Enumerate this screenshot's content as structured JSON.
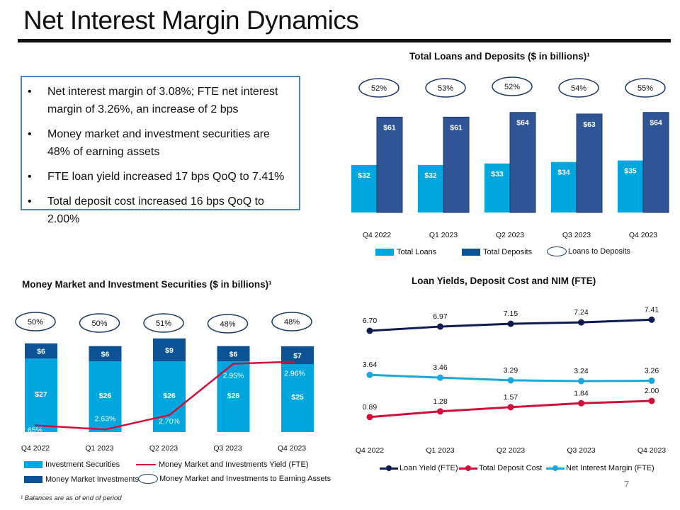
{
  "header": {
    "title": "Net Interest Margin Dynamics"
  },
  "highlights": [
    "Net interest margin of 3.08%; FTE net interest margin of 3.26%, an increase of 2 bps",
    "Money market and investment securities are 48% of earning assets",
    "FTE loan yield increased 17 bps QoQ to 7.41%",
    "Total deposit cost increased 16 bps QoQ to 2.00%"
  ],
  "colors": {
    "light_blue": "#00a6de",
    "dark_blue": "#2f5597",
    "navy": "#0b5394",
    "loan_yield": "#0d1b4f",
    "deposit_cost": "#d0103a",
    "nim": "#1aa7dc",
    "oval": "#1f3864"
  },
  "footnote": "¹ Balances are as of end of period",
  "page_number": "7",
  "chart_data": [
    {
      "id": "loans_deposits",
      "type": "bar",
      "title": "Total Loans and Deposits ($ in billions)¹",
      "categories": [
        "Q4 2022",
        "Q1 2023",
        "Q2 2023",
        "Q3 2023",
        "Q4 2023"
      ],
      "series": [
        {
          "name": "Total Loans",
          "values": [
            32,
            32,
            33,
            34,
            35
          ],
          "labels": [
            "$32",
            "$32",
            "$33",
            "$34",
            "$35"
          ],
          "color": "#00a6de"
        },
        {
          "name": "Total Deposits",
          "values": [
            61,
            61,
            64,
            63,
            64
          ],
          "labels": [
            "$61",
            "$61",
            "$64",
            "$63",
            "$64"
          ],
          "color": "#2f5597"
        }
      ],
      "ratio": {
        "name": "Loans to Deposits",
        "labels": [
          "52%",
          "53%",
          "52%",
          "54%",
          "55%"
        ]
      },
      "legend": [
        "Total Loans",
        "Total Deposits",
        "Loans to Deposits"
      ],
      "legend_position": "bottom",
      "ylim": [
        0,
        70
      ],
      "grid": false
    },
    {
      "id": "mm_investments",
      "type": "bar",
      "stacked": true,
      "title": "Money Market and Investment Securities ($ in billions)¹",
      "categories": [
        "Q4 2022",
        "Q1 2023",
        "Q2 2023",
        "Q3 2023",
        "Q4 2023"
      ],
      "series": [
        {
          "name": "Investment Securities",
          "values": [
            27,
            26,
            26,
            26,
            25
          ],
          "labels": [
            "$27",
            "$26",
            "$26",
            "$26",
            "$25"
          ],
          "color": "#00a6de"
        },
        {
          "name": "Money Market Investments",
          "values": [
            6,
            6,
            9,
            6,
            7
          ],
          "labels": [
            "$6",
            "$6",
            "$9",
            "$6",
            "$7"
          ],
          "color": "#0b5394"
        }
      ],
      "line": {
        "name": "Money Market and Investments Yield (FTE)",
        "values": [
          2.65,
          2.63,
          2.7,
          2.95,
          2.96
        ],
        "labels": [
          "2.65%",
          "2.63%",
          "2.70%",
          "2.95%",
          "2.96%"
        ],
        "color": "#d0103a"
      },
      "ratio": {
        "name": "Money Market and Investments to Earning Assets",
        "labels": [
          "50%",
          "50%",
          "51%",
          "48%",
          "48%"
        ]
      },
      "legend": [
        "Investment Securities",
        "Money Market and Investments Yield (FTE)",
        "Money Market Investments",
        "Money Market and Investments to Earning Assets"
      ],
      "legend_position": "bottom",
      "ylim": [
        0,
        36
      ],
      "grid": false
    },
    {
      "id": "yields_nim",
      "type": "line",
      "title": "Loan Yields, Deposit Cost and NIM (FTE)",
      "categories": [
        "Q4 2022",
        "Q1 2023",
        "Q2 2023",
        "Q3 2023",
        "Q4 2023"
      ],
      "series": [
        {
          "name": "Loan Yield (FTE)",
          "values": [
            6.7,
            6.97,
            7.15,
            7.24,
            7.41
          ],
          "labels": [
            "6.70",
            "6.97",
            "7.15",
            "7.24",
            "7.41"
          ],
          "color": "#0d1b4f"
        },
        {
          "name": "Total Deposit Cost",
          "values": [
            0.89,
            1.28,
            1.57,
            1.84,
            2.0
          ],
          "labels": [
            "0.89",
            "1.28",
            "1.57",
            "1.84",
            "2.00"
          ],
          "color": "#d0103a"
        },
        {
          "name": "Net Interest Margin (FTE)",
          "values": [
            3.64,
            3.46,
            3.29,
            3.24,
            3.26
          ],
          "labels": [
            "3.64",
            "3.46",
            "3.29",
            "3.24",
            "3.26"
          ],
          "color": "#1aa7dc"
        }
      ],
      "legend_position": "bottom",
      "grid": false
    }
  ]
}
